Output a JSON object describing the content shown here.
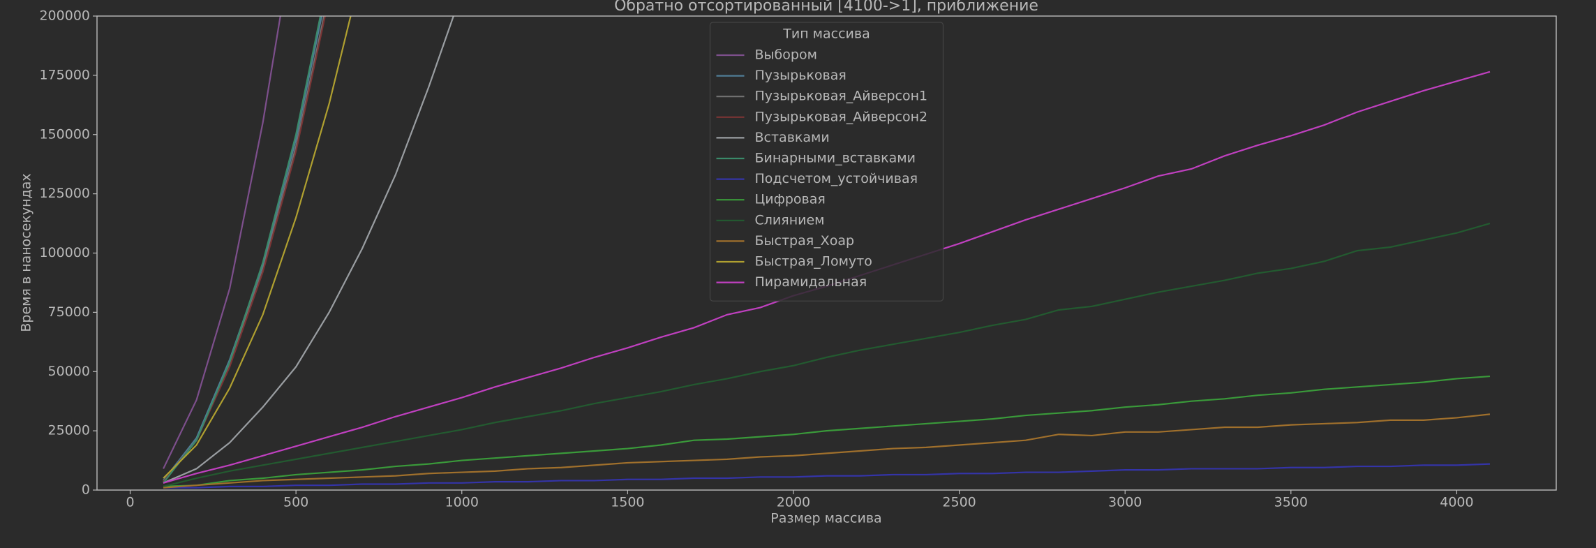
{
  "chart_data": {
    "type": "line",
    "title": "Обратно отсортированный [4100->1], приближение",
    "x_label": "Размер массива",
    "y_label": "Время в наносекундах",
    "legend_title": "Тип массива",
    "legend_loc": "upper center",
    "grid": false,
    "xlim": [
      -100,
      4300
    ],
    "ylim": [
      0,
      200000
    ],
    "xticks": [
      0,
      500,
      1000,
      1500,
      2000,
      2500,
      3000,
      3500,
      4000
    ],
    "yticks": [
      0,
      25000,
      50000,
      75000,
      100000,
      125000,
      150000,
      175000,
      200000
    ],
    "x": [
      100,
      200,
      300,
      400,
      500,
      600,
      700,
      800,
      900,
      1000,
      1100,
      1200,
      1300,
      1400,
      1500,
      1600,
      1700,
      1800,
      1900,
      2000,
      2100,
      2200,
      2300,
      2400,
      2500,
      2600,
      2700,
      2800,
      2900,
      3000,
      3100,
      3200,
      3300,
      3400,
      3500,
      3600,
      3700,
      3800,
      3900,
      4000,
      4100
    ],
    "series": [
      {
        "name": "Выбором",
        "color": "#7d4f8c",
        "values": [
          9000,
          38000,
          85000,
          155000,
          240000,
          null,
          null,
          null,
          null,
          null,
          null,
          null,
          null,
          null,
          null,
          null,
          null,
          null,
          null,
          null,
          null,
          null,
          null,
          null,
          null,
          null,
          null,
          null,
          null,
          null,
          null,
          null,
          null,
          null,
          null,
          null,
          null,
          null,
          null,
          null,
          null
        ]
      },
      {
        "name": "Пузырьковая",
        "color": "#4f7c96",
        "values": [
          4000,
          22000,
          55000,
          95000,
          148000,
          215000,
          null,
          null,
          null,
          null,
          null,
          null,
          null,
          null,
          null,
          null,
          null,
          null,
          null,
          null,
          null,
          null,
          null,
          null,
          null,
          null,
          null,
          null,
          null,
          null,
          null,
          null,
          null,
          null,
          null,
          null,
          null,
          null,
          null,
          null,
          null
        ]
      },
      {
        "name": "Пузырьковая_Айверсон1",
        "color": "#727272",
        "values": [
          3500,
          21000,
          53000,
          93000,
          145000,
          210000,
          null,
          null,
          null,
          null,
          null,
          null,
          null,
          null,
          null,
          null,
          null,
          null,
          null,
          null,
          null,
          null,
          null,
          null,
          null,
          null,
          null,
          null,
          null,
          null,
          null,
          null,
          null,
          null,
          null,
          null,
          null,
          null,
          null,
          null,
          null
        ]
      },
      {
        "name": "Пузырьковая_Айверсон2",
        "color": "#7a3535",
        "values": [
          3500,
          21000,
          52000,
          92000,
          143000,
          208000,
          null,
          null,
          null,
          null,
          null,
          null,
          null,
          null,
          null,
          null,
          null,
          null,
          null,
          null,
          null,
          null,
          null,
          null,
          null,
          null,
          null,
          null,
          null,
          null,
          null,
          null,
          null,
          null,
          null,
          null,
          null,
          null,
          null,
          null,
          null
        ]
      },
      {
        "name": "Вставками",
        "color": "#9a9ea2",
        "values": [
          3000,
          9000,
          20000,
          35000,
          52000,
          75000,
          102000,
          133000,
          170000,
          210000,
          null,
          null,
          null,
          null,
          null,
          null,
          null,
          null,
          null,
          null,
          null,
          null,
          null,
          null,
          null,
          null,
          null,
          null,
          null,
          null,
          null,
          null,
          null,
          null,
          null,
          null,
          null,
          null,
          null,
          null,
          null
        ]
      },
      {
        "name": "Бинарными_вставками",
        "color": "#3a8a6a",
        "values": [
          3000,
          21000,
          54000,
          96000,
          150000,
          218000,
          null,
          null,
          null,
          null,
          null,
          null,
          null,
          null,
          null,
          null,
          null,
          null,
          null,
          null,
          null,
          null,
          null,
          null,
          null,
          null,
          null,
          null,
          null,
          null,
          null,
          null,
          null,
          null,
          null,
          null,
          null,
          null,
          null,
          null,
          null
        ]
      },
      {
        "name": "Подсчетом_устойчивая",
        "color": "#3434a8",
        "values": [
          1000,
          1000,
          1500,
          1500,
          2000,
          2000,
          2500,
          2500,
          3000,
          3000,
          3500,
          3500,
          4000,
          4000,
          4500,
          4500,
          5000,
          5000,
          5500,
          5500,
          6000,
          6000,
          6500,
          6500,
          7000,
          7000,
          7500,
          7500,
          8000,
          8500,
          8500,
          9000,
          9000,
          9000,
          9500,
          9500,
          10000,
          10000,
          10500,
          10500,
          11000
        ]
      },
      {
        "name": "Цифровая",
        "color": "#3a9a3a",
        "values": [
          1500,
          2000,
          4000,
          5000,
          6500,
          7500,
          8500,
          10000,
          11000,
          12500,
          13500,
          14500,
          15500,
          16500,
          17500,
          19000,
          21000,
          21500,
          22500,
          23500,
          25000,
          26000,
          27000,
          28000,
          29000,
          30000,
          31500,
          32500,
          33500,
          35000,
          36000,
          37500,
          38500,
          40000,
          41000,
          42500,
          43500,
          44500,
          45500,
          47000,
          48000
        ]
      },
      {
        "name": "Слиянием",
        "color": "#235a30",
        "values": [
          1500,
          5000,
          8000,
          10500,
          13000,
          15500,
          18000,
          20500,
          23000,
          25500,
          28500,
          31000,
          33500,
          36500,
          39000,
          41500,
          44500,
          47000,
          50000,
          52500,
          56000,
          59000,
          61500,
          64000,
          66500,
          69500,
          72000,
          76000,
          77500,
          80500,
          83500,
          86000,
          88500,
          91500,
          93500,
          96500,
          101000,
          102500,
          105500,
          108500,
          112500
        ]
      },
      {
        "name": "Быстрая_Хоар",
        "color": "#a0702c",
        "values": [
          1000,
          2000,
          3000,
          4000,
          4500,
          5000,
          5500,
          6000,
          7000,
          7500,
          8000,
          9000,
          9500,
          10500,
          11500,
          12000,
          12500,
          13000,
          14000,
          14500,
          15500,
          16500,
          17500,
          18000,
          19000,
          20000,
          21000,
          23500,
          23000,
          24500,
          24500,
          25500,
          26500,
          26500,
          27500,
          28000,
          28500,
          29500,
          29500,
          30500,
          32000
        ]
      },
      {
        "name": "Быстрая_Ломуто",
        "color": "#b0a030",
        "values": [
          5000,
          19000,
          43000,
          74000,
          115000,
          163000,
          220000,
          null,
          null,
          null,
          null,
          null,
          null,
          null,
          null,
          null,
          null,
          null,
          null,
          null,
          null,
          null,
          null,
          null,
          null,
          null,
          null,
          null,
          null,
          null,
          null,
          null,
          null,
          null,
          null,
          null,
          null,
          null,
          null,
          null,
          null
        ]
      },
      {
        "name": "Пирамидальная",
        "color": "#c040c0",
        "values": [
          3000,
          7000,
          10500,
          14500,
          18500,
          22500,
          26500,
          31000,
          35000,
          39000,
          43500,
          47500,
          51500,
          56000,
          60000,
          64500,
          68500,
          74000,
          77000,
          82000,
          86000,
          90500,
          95000,
          99500,
          104000,
          109000,
          114000,
          118500,
          123000,
          127500,
          132500,
          135500,
          141000,
          145500,
          149500,
          154000,
          159500,
          164000,
          168500,
          172500,
          176500
        ]
      }
    ]
  }
}
